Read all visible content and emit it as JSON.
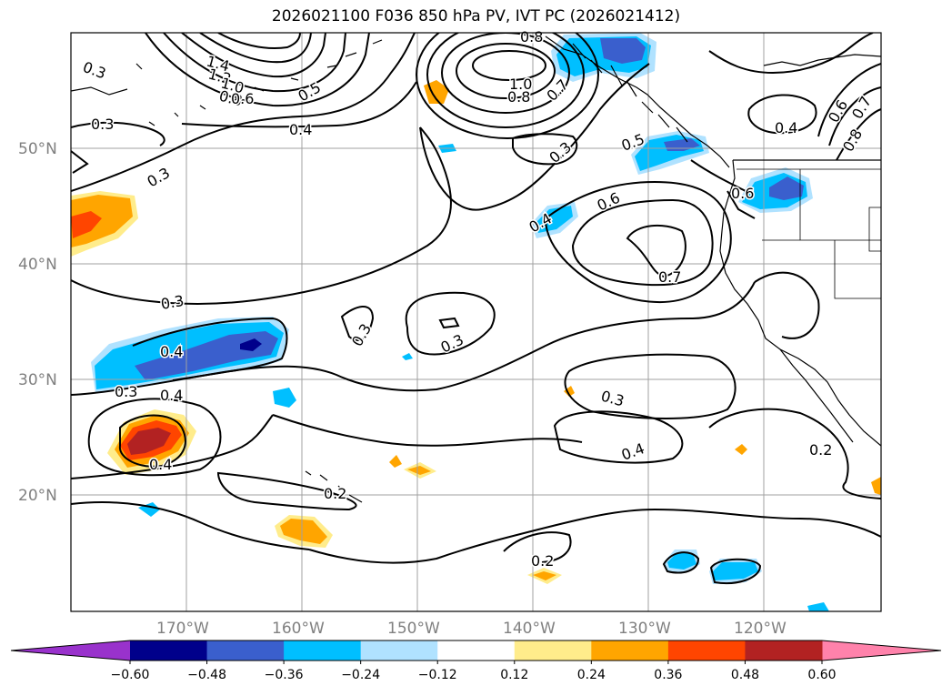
{
  "title": "2026021100 F036 850 hPa PV, IVT PC (2026021412)",
  "map": {
    "lat_labels": [
      "50°N",
      "40°N",
      "30°N",
      "20°N"
    ],
    "lon_labels": [
      "170°W",
      "160°W",
      "150°W",
      "140°W",
      "130°W",
      "120°W"
    ],
    "contour_color": "#000000",
    "grid_color": "#a0a0a0",
    "coastline_color": "#000000",
    "contour_labels": [
      "0.3",
      "1.4",
      "1.2",
      "1.0",
      "0.8",
      "0.6",
      "0.5",
      "0.3",
      "0.4",
      "0.3",
      "0.8",
      "1.0",
      "0.8",
      "0.7",
      "0.3",
      "0.6",
      "0.5",
      "0.4",
      "0.6",
      "0.4",
      "0.6",
      "0.7",
      "0.8",
      "0.3",
      "0.4",
      "0.3",
      "0.4",
      "0.3",
      "0.3",
      "0.3",
      "0.4",
      "0.4",
      "0.2",
      "0.2",
      "0.2",
      "0.7"
    ]
  },
  "colorbar": {
    "ticks": [
      "−0.60",
      "−0.48",
      "−0.36",
      "−0.24",
      "−0.12",
      "0.12",
      "0.24",
      "0.36",
      "0.48",
      "0.60"
    ],
    "colors": [
      "#9932cc",
      "#00008b",
      "#3a5fcd",
      "#00bfff",
      "#b0e2ff",
      "#ffffff",
      "#ffec8b",
      "#ffa500",
      "#ff4500",
      "#b22222",
      "#ff82ab"
    ]
  }
}
